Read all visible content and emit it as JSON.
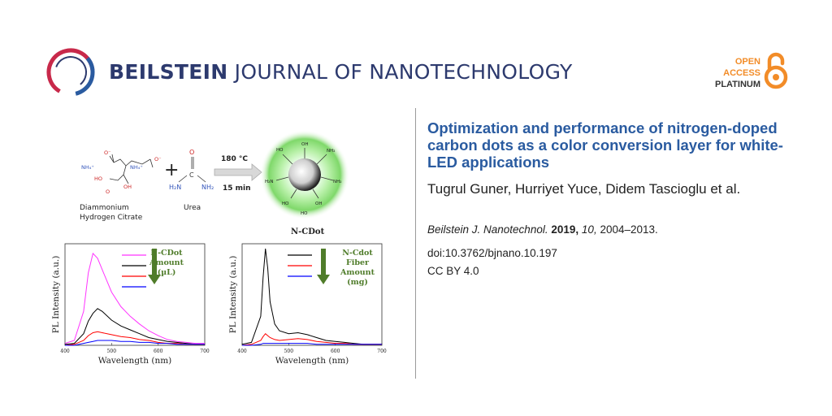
{
  "journal": {
    "name_bold": "BEILSTEIN",
    "name_rest": " JOURNAL OF NANOTECHNOLOGY",
    "brand_color": "#2d3a6e",
    "logo_colors": [
      "#c8294a",
      "#2a5ba0"
    ]
  },
  "open_access": {
    "line1": "OPEN",
    "line2": "ACCESS",
    "line3": "PLATINUM",
    "accent_color": "#f28c28",
    "icon": "open-lock-icon"
  },
  "article": {
    "title": "Optimization and performance of nitrogen-doped carbon dots as a color conversion layer for white-LED applications",
    "authors": "Tugrul Guner, Hurriyet Yuce, Didem Tascioglu et al.",
    "journal_abbrev": "Beilstein J. Nanotechnol.",
    "year": "2019,",
    "volume": "10,",
    "pages": "2004–2013.",
    "doi": "doi:10.3762/bjnano.10.197",
    "license": "CC BY 4.0",
    "title_color": "#2a5ba0"
  },
  "scheme": {
    "reactant1_line1": "Diammonium",
    "reactant1_line2": "Hydrogen Citrate",
    "reactant2": "Urea",
    "plus": "+",
    "temperature": "180 °C",
    "time": "15 min",
    "product": "N-CDot",
    "nh4": "NH₄⁺",
    "groups": {
      "oh": "OH",
      "ho": "HO",
      "nh2": "NH₂",
      "h2n": "H₂N",
      "o": "O",
      "o_minus": "O⁻",
      "c": "C"
    }
  },
  "chart_data": [
    {
      "type": "line",
      "xlabel": "Wavelength (nm)",
      "ylabel": "PL Intensity (a.u.)",
      "xlim": [
        400,
        700
      ],
      "x_ticks": [
        "400",
        "500",
        "600",
        "700"
      ],
      "annotation": [
        "N-CDot",
        "Amount",
        "(µL)"
      ],
      "x": [
        400,
        420,
        440,
        450,
        460,
        470,
        480,
        500,
        520,
        540,
        560,
        580,
        600,
        620,
        640,
        660,
        680,
        700
      ],
      "series": [
        {
          "color": "#ff33ff",
          "values": [
            2,
            5,
            35,
            75,
            95,
            90,
            78,
            55,
            40,
            30,
            22,
            15,
            10,
            6,
            4,
            3,
            2,
            2
          ]
        },
        {
          "color": "#000000",
          "values": [
            1,
            2,
            12,
            25,
            33,
            38,
            35,
            26,
            20,
            16,
            12,
            8,
            6,
            4,
            3,
            2,
            1,
            1
          ]
        },
        {
          "color": "#ff0000",
          "values": [
            0,
            1,
            5,
            10,
            13,
            14,
            13,
            11,
            9,
            8,
            6,
            5,
            3,
            2,
            2,
            1,
            1,
            1
          ]
        },
        {
          "color": "#0000ff",
          "values": [
            0,
            0,
            2,
            3,
            4,
            5,
            5,
            5,
            4,
            4,
            3,
            3,
            2,
            2,
            1,
            1,
            1,
            1
          ]
        }
      ]
    },
    {
      "type": "line",
      "xlabel": "Wavelength (nm)",
      "ylabel": "PL Intensity (a.u.)",
      "xlim": [
        400,
        700
      ],
      "x_ticks": [
        "400",
        "500",
        "600",
        "700"
      ],
      "annotation": [
        "N-Cdot",
        "Fiber",
        "Amount",
        "(mg)"
      ],
      "x": [
        400,
        420,
        440,
        445,
        450,
        455,
        460,
        470,
        480,
        500,
        520,
        540,
        560,
        580,
        600,
        620,
        640,
        660,
        680,
        700
      ],
      "series": [
        {
          "color": "#000000",
          "values": [
            1,
            3,
            30,
            70,
            100,
            80,
            45,
            22,
            15,
            12,
            13,
            11,
            8,
            5,
            4,
            3,
            2,
            1,
            1,
            1
          ]
        },
        {
          "color": "#ff0000",
          "values": [
            0,
            1,
            5,
            9,
            12,
            10,
            8,
            6,
            5,
            6,
            7,
            6,
            4,
            3,
            2,
            2,
            1,
            1,
            1,
            1
          ]
        },
        {
          "color": "#0000ff",
          "values": [
            0,
            0,
            1,
            2,
            2,
            2,
            2,
            2,
            2,
            2,
            2,
            2,
            1,
            1,
            1,
            1,
            1,
            1,
            1,
            1
          ]
        }
      ]
    }
  ]
}
